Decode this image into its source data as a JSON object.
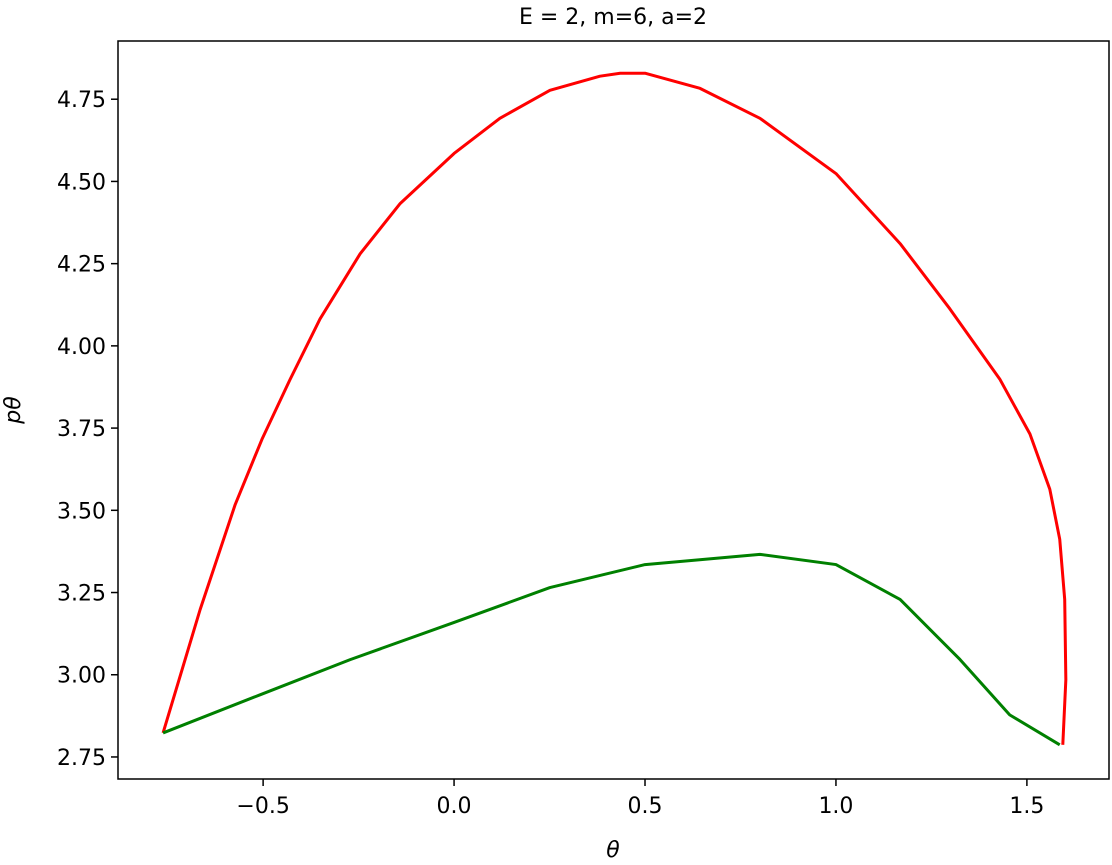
{
  "chart_data": {
    "type": "line",
    "title": "E = 2, m=6, a=2",
    "x_label": "θ",
    "y_label": "pθ",
    "xlim": [
      -0.88,
      1.715
    ],
    "ylim": [
      2.683,
      4.927
    ],
    "xticks": [
      {
        "value": -0.5,
        "label": "−0.5"
      },
      {
        "value": 0,
        "label": "0.0"
      },
      0.5,
      {
        "value": 1,
        "label": "1.0"
      },
      1.5
    ],
    "yticks": [
      2.75,
      {
        "value": 3,
        "label": "3.00"
      },
      3.25,
      {
        "value": 3.5,
        "label": "3.50"
      },
      3.75,
      {
        "value": 4,
        "label": "4.00"
      },
      4.25,
      {
        "value": 4.5,
        "label": "4.50"
      },
      4.75
    ],
    "grid": false,
    "series": [
      {
        "color": "#ff0000",
        "x": [
          -0.762,
          -0.665,
          -0.573,
          -0.503,
          -0.429,
          -0.351,
          -0.246,
          -0.141,
          0,
          0.12,
          0.251,
          0.382,
          0.435,
          0.5,
          0.644,
          0.801,
          1.0,
          1.168,
          1.298,
          1.429,
          1.508,
          1.56,
          1.586,
          1.599,
          1.602,
          1.594
        ],
        "values": [
          2.823,
          3.198,
          3.518,
          3.716,
          3.899,
          4.082,
          4.28,
          4.433,
          4.585,
          4.692,
          4.777,
          4.82,
          4.829,
          4.829,
          4.783,
          4.692,
          4.524,
          4.311,
          4.113,
          3.899,
          3.732,
          3.564,
          3.412,
          3.229,
          2.985,
          2.787
        ]
      },
      {
        "color": "#008000",
        "x": [
          -0.762,
          -0.508,
          -0.272,
          0,
          0.251,
          0.5,
          0.801,
          1.0,
          1.168,
          1.325,
          1.455,
          1.586
        ],
        "values": [
          2.823,
          2.939,
          3.046,
          3.159,
          3.265,
          3.335,
          3.366,
          3.335,
          3.229,
          3.046,
          2.878,
          2.787
        ]
      }
    ]
  }
}
